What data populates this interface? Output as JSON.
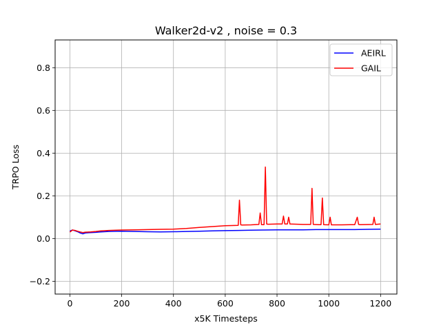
{
  "chart_data": {
    "type": "line",
    "title": "Walker2d-v2 , noise = 0.3",
    "xlabel": "x5K Timesteps",
    "ylabel": "TRPO Loss",
    "xlim": [
      -57,
      1263
    ],
    "ylim": [
      -0.26,
      0.93
    ],
    "xticks": [
      0,
      200,
      400,
      600,
      800,
      1000,
      1200
    ],
    "xtick_labels": [
      "0",
      "200",
      "400",
      "600",
      "800",
      "1000",
      "1200"
    ],
    "yticks": [
      -0.2,
      0.0,
      0.2,
      0.4,
      0.6,
      0.8
    ],
    "ytick_labels": [
      "−0.2",
      "0.0",
      "0.2",
      "0.4",
      "0.6",
      "0.8"
    ],
    "grid": true,
    "legend_position": "top-right",
    "series": [
      {
        "name": "AEIRL",
        "color": "#0000ff",
        "x": [
          0,
          10,
          20,
          30,
          40,
          50,
          60,
          80,
          100,
          120,
          150,
          200,
          250,
          300,
          350,
          400,
          450,
          500,
          550,
          600,
          650,
          700,
          750,
          800,
          850,
          900,
          950,
          1000,
          1050,
          1100,
          1150,
          1200
        ],
        "y": [
          0.035,
          0.04,
          0.036,
          0.032,
          0.026,
          0.022,
          0.026,
          0.028,
          0.029,
          0.031,
          0.033,
          0.034,
          0.033,
          0.032,
          0.031,
          0.032,
          0.033,
          0.034,
          0.036,
          0.037,
          0.038,
          0.039,
          0.04,
          0.041,
          0.041,
          0.041,
          0.042,
          0.042,
          0.042,
          0.042,
          0.043,
          0.044
        ]
      },
      {
        "name": "GAIL",
        "color": "#ff0000",
        "x": [
          0,
          10,
          20,
          30,
          40,
          50,
          60,
          80,
          100,
          120,
          150,
          200,
          250,
          300,
          350,
          400,
          450,
          500,
          550,
          600,
          650,
          655,
          660,
          665,
          700,
          730,
          735,
          740,
          750,
          755,
          760,
          765,
          800,
          820,
          825,
          830,
          840,
          845,
          850,
          900,
          930,
          935,
          940,
          960,
          970,
          975,
          980,
          1000,
          1005,
          1010,
          1050,
          1100,
          1110,
          1115,
          1120,
          1170,
          1175,
          1180,
          1200
        ],
        "y": [
          0.03,
          0.04,
          0.038,
          0.034,
          0.031,
          0.028,
          0.03,
          0.031,
          0.033,
          0.036,
          0.038,
          0.04,
          0.041,
          0.042,
          0.043,
          0.044,
          0.047,
          0.052,
          0.056,
          0.06,
          0.062,
          0.18,
          0.064,
          0.063,
          0.064,
          0.066,
          0.12,
          0.065,
          0.065,
          0.335,
          0.068,
          0.067,
          0.068,
          0.068,
          0.105,
          0.068,
          0.068,
          0.1,
          0.068,
          0.066,
          0.066,
          0.235,
          0.066,
          0.065,
          0.065,
          0.19,
          0.065,
          0.064,
          0.1,
          0.064,
          0.064,
          0.065,
          0.1,
          0.066,
          0.065,
          0.066,
          0.1,
          0.066,
          0.068
        ]
      }
    ]
  }
}
